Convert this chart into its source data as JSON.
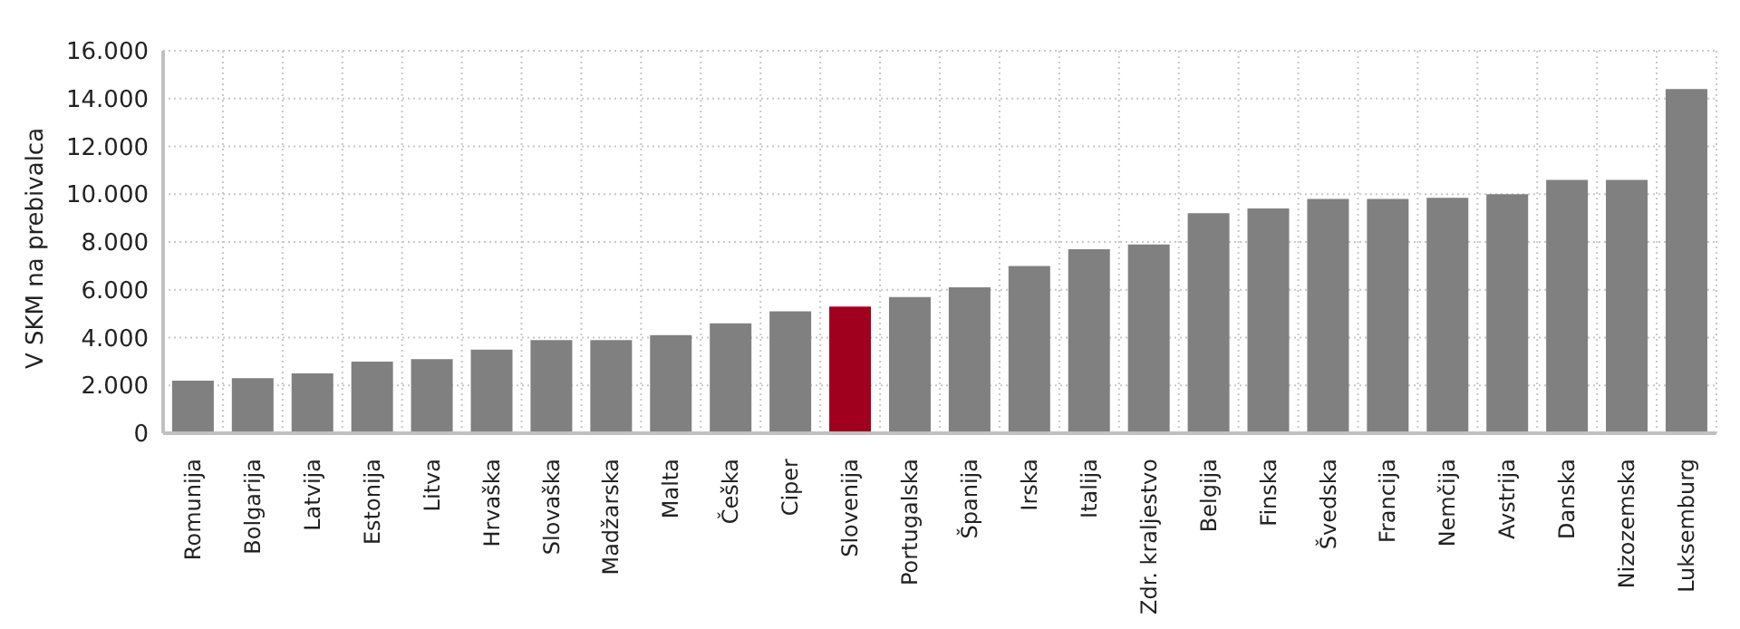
{
  "chart_data": {
    "type": "bar",
    "ylabel": "V SKM na prebivalca",
    "categories": [
      "Romunija",
      "Bolgarija",
      "Latvija",
      "Estonija",
      "Litva",
      "Hrvaška",
      "Slovaška",
      "Madžarska",
      "Malta",
      "Češka",
      "Ciper",
      "Slovenija",
      "Portugalska",
      "Španija",
      "Irska",
      "Italija",
      "Zdr. kraljestvo",
      "Belgija",
      "Finska",
      "Švedska",
      "Francija",
      "Nemčija",
      "Avstrija",
      "Danska",
      "Nizozemska",
      "Luksemburg"
    ],
    "values": [
      2200,
      2300,
      2500,
      3000,
      3100,
      3500,
      3900,
      3900,
      4100,
      4600,
      5100,
      5300,
      5700,
      6100,
      7000,
      7700,
      7900,
      9200,
      9400,
      9800,
      9800,
      9850,
      10000,
      10600,
      10600,
      14400
    ],
    "colors": [
      "#808080",
      "#808080",
      "#808080",
      "#808080",
      "#808080",
      "#808080",
      "#808080",
      "#808080",
      "#808080",
      "#808080",
      "#808080",
      "#a0001e",
      "#808080",
      "#808080",
      "#808080",
      "#808080",
      "#808080",
      "#808080",
      "#808080",
      "#808080",
      "#808080",
      "#808080",
      "#808080",
      "#808080",
      "#808080",
      "#808080"
    ],
    "ylim": [
      0,
      16000
    ],
    "yticks": [
      {
        "value": 0,
        "label": "0"
      },
      {
        "value": 2000,
        "label": "2.000"
      },
      {
        "value": 4000,
        "label": "4.000"
      },
      {
        "value": 6000,
        "label": "6.000"
      },
      {
        "value": 8000,
        "label": "8.000"
      },
      {
        "value": 10000,
        "label": "10.000"
      },
      {
        "value": 12000,
        "label": "12.000"
      },
      {
        "value": 14000,
        "label": "14.000"
      },
      {
        "value": 16000,
        "label": "16.000"
      }
    ],
    "grid": true
  }
}
